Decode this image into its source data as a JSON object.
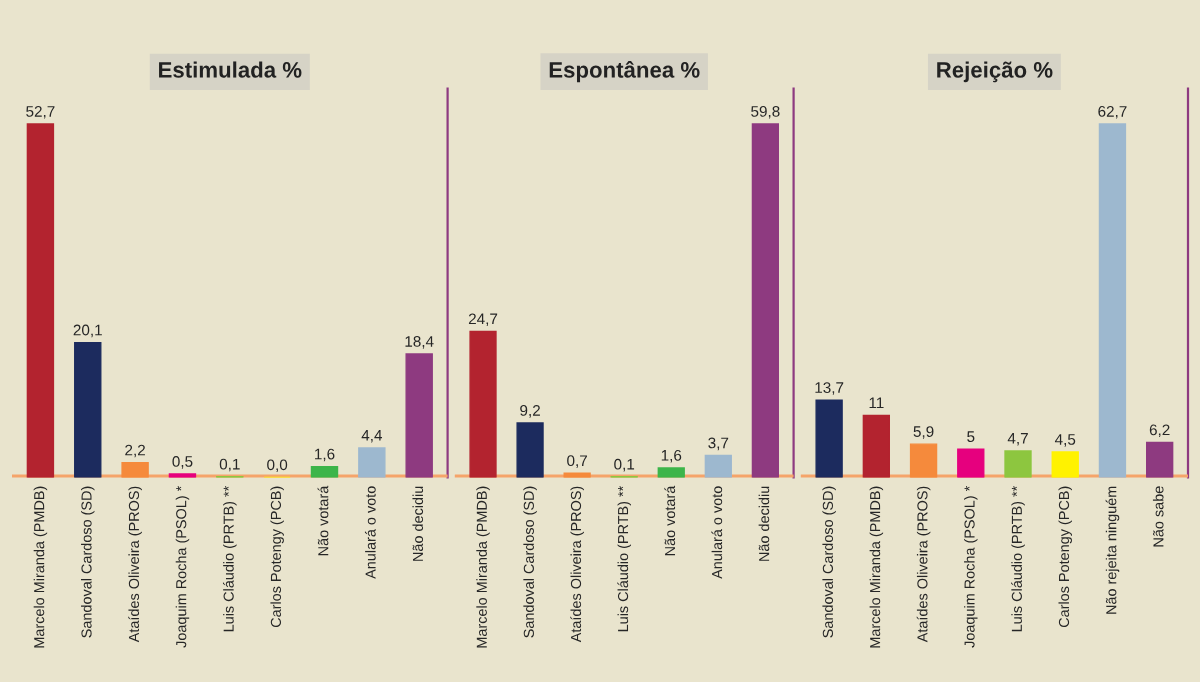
{
  "chart_data": [
    {
      "type": "bar",
      "title": "Estimulada %",
      "categories": [
        "Marcelo Miranda (PMDB)",
        "Sandoval Cardoso (SD)",
        "Ataídes Oliveira (PROS)",
        "Joaquim Rocha (PSOL) *",
        "Luis Cláudio (PRTB) **",
        "Carlos Potengy (PCB)",
        "Não votará",
        "Anulará o voto",
        "Não decidiu"
      ],
      "values": [
        52.7,
        20.1,
        2.2,
        0.5,
        0.1,
        0.0,
        1.6,
        4.4,
        18.4
      ],
      "value_labels": [
        "52,7",
        "20,1",
        "2,2",
        "0,5",
        "0,1",
        "0,0",
        "1,6",
        "4,4",
        "18,4"
      ],
      "colors": [
        "#b3232f",
        "#1c2b5e",
        "#f58a3c",
        "#e6007e",
        "#8dc63f",
        "#fff200",
        "#3cb54a",
        "#9db8cf",
        "#8e3a80"
      ]
    },
    {
      "type": "bar",
      "title": "Espontânea %",
      "categories": [
        "Marcelo Miranda (PMDB)",
        "Sandoval Cardoso (SD)",
        "Ataídes Oliveira (PROS)",
        "Luis Cláudio (PRTB) **",
        "Não votará",
        "Anulará o voto",
        "Não decidiu"
      ],
      "values": [
        24.7,
        9.2,
        0.7,
        0.1,
        1.6,
        3.7,
        59.8
      ],
      "value_labels": [
        "24,7",
        "9,2",
        "0,7",
        "0,1",
        "1,6",
        "3,7",
        "59,8"
      ],
      "colors": [
        "#b3232f",
        "#1c2b5e",
        "#f58a3c",
        "#8dc63f",
        "#3cb54a",
        "#9db8cf",
        "#8e3a80"
      ]
    },
    {
      "type": "bar",
      "title": "Rejeição %",
      "categories": [
        "Sandoval Cardoso (SD)",
        "Marcelo Miranda (PMDB)",
        "Ataídes Oliveira (PROS)",
        "Joaquim Rocha (PSOL) *",
        "Luis Cláudio (PRTB) **",
        "Carlos Potengy (PCB)",
        "Não rejeita ninguém",
        "Não sabe"
      ],
      "values": [
        13.7,
        11,
        5.9,
        5,
        4.7,
        4.5,
        62.7,
        6.2
      ],
      "value_labels": [
        "13,7",
        "11",
        "5,9",
        "5",
        "4,7",
        "4,5",
        "62,7",
        "6,2"
      ],
      "colors": [
        "#1c2b5e",
        "#b3232f",
        "#f58a3c",
        "#e6007e",
        "#8dc63f",
        "#fff200",
        "#9db8cf",
        "#8e3a80"
      ]
    }
  ]
}
